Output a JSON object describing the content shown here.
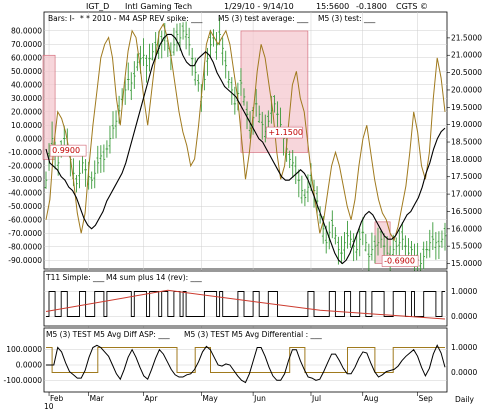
{
  "header": {
    "symbol": "IGT_D",
    "name": "Intl Gaming Tech",
    "dates": "1/29/10 - 9/14/10",
    "time": "15:5600",
    "change": "-0.1800",
    "copyright": "CGTS ©"
  },
  "colors": {
    "bars": "#3a9a3a",
    "black": "#000000",
    "gold": "#a07a1e",
    "red": "#cc3a2e",
    "highlight_fill": "#f4c4cc",
    "highlight_stroke": "#d06070",
    "grid": "#cfcfcf",
    "annotation": "#c00000"
  },
  "chart_data": [
    {
      "type": "line",
      "panel": "main",
      "legend": {
        "bars": "Bars: I-",
        "spike": "* * 2010 - M4 ASP REV spike: ___",
        "avg": "M5 (3) test average: ___",
        "test": "M5 (3) test: ___"
      },
      "left_axis": {
        "ticks": [
          "80.0000",
          "70.0000",
          "60.0000",
          "50.0000",
          "40.0000",
          "30.0000",
          "20.0000",
          "10.0000",
          "0.0000",
          "-10.0000",
          "-20.0000",
          "-30.0000",
          "-40.0000",
          "-50.0000",
          "-60.0000",
          "-70.0000",
          "-80.0000",
          "-90.0000"
        ],
        "range": [
          -95,
          85
        ]
      },
      "right_axis": {
        "ticks": [
          "21.5000",
          "21.0000",
          "20.5000",
          "20.0000",
          "19.5000",
          "19.0000",
          "18.5000",
          "18.0000",
          "17.5000",
          "17.0000",
          "16.5000",
          "16.0000",
          "15.5000",
          "15.0000"
        ],
        "range": [
          14.9,
          21.9
        ]
      },
      "x_axis": {
        "ticks": [
          "Feb",
          "Mar",
          "Apr",
          "May",
          "Jun",
          "Jul",
          "Aug",
          "Sep"
        ],
        "start_label": "10",
        "period": "Daily"
      },
      "annotations": [
        {
          "text": "0.9900",
          "price": 18.18,
          "index": 2
        },
        {
          "text": "+1.1500",
          "price": 18.7,
          "index": 73
        },
        {
          "text": "-0.6900",
          "price": 15.0,
          "index": 111
        }
      ],
      "price_bars_close": [
        17.4,
        18.1,
        18.6,
        18.2,
        17.9,
        18.3,
        18.6,
        18.4,
        18.0,
        17.6,
        17.3,
        17.6,
        17.9,
        17.7,
        17.5,
        17.4,
        17.6,
        17.9,
        18.1,
        18.0,
        18.3,
        18.6,
        18.9,
        19.1,
        19.4,
        19.8,
        20.0,
        20.3,
        20.2,
        20.4,
        20.8,
        20.9,
        21.0,
        20.7,
        20.9,
        21.1,
        21.3,
        21.2,
        21.4,
        21.5,
        21.2,
        21.0,
        21.3,
        21.6,
        21.5,
        21.7,
        21.6,
        21.3,
        20.9,
        20.5,
        20.2,
        19.8,
        20.3,
        20.9,
        21.3,
        21.5,
        21.3,
        21.6,
        21.2,
        20.7,
        20.3,
        20.0,
        19.6,
        19.9,
        20.2,
        19.8,
        19.3,
        18.9,
        19.2,
        19.6,
        19.3,
        19.0,
        18.8,
        19.1,
        19.4,
        19.6,
        19.3,
        19.0,
        18.6,
        18.3,
        18.0,
        17.9,
        17.6,
        17.4,
        17.1,
        16.9,
        17.2,
        17.4,
        17.1,
        16.8,
        16.4,
        16.0,
        15.6,
        15.9,
        16.1,
        15.8,
        15.4,
        15.3,
        15.6,
        15.8,
        15.7,
        15.5,
        15.4,
        15.7,
        15.9,
        15.6,
        15.2,
        15.4,
        15.5,
        15.6,
        15.7,
        15.5,
        15.3,
        15.2,
        15.4,
        15.5,
        15.6,
        15.7,
        15.5,
        15.3,
        15.4,
        15.2,
        15.1,
        15.0,
        15.2,
        15.4,
        15.6,
        15.7,
        15.6,
        15.5,
        15.7,
        15.8
      ],
      "avg_line": [
        18.3,
        17.9,
        17.8,
        17.7,
        17.5,
        17.4,
        17.2,
        17.1,
        16.9,
        16.6,
        16.3,
        16.1,
        16.0,
        16.1,
        16.3,
        16.5,
        16.8,
        17.0,
        17.2,
        17.4,
        17.6,
        17.9,
        18.3,
        18.7,
        19.1,
        19.5,
        19.9,
        20.3,
        20.7,
        21.0,
        21.3,
        21.5,
        21.6,
        21.6,
        21.5,
        21.3,
        21.0,
        20.8,
        20.7,
        20.7,
        20.9,
        21.0,
        21.1,
        21.0,
        20.8,
        20.5,
        20.3,
        20.1,
        20.0,
        19.9,
        19.8,
        19.6,
        19.4,
        19.2,
        19.0,
        18.8,
        18.6,
        18.5,
        18.3,
        18.1,
        17.9,
        17.7,
        17.5,
        17.4,
        17.4,
        17.5,
        17.6,
        17.7,
        17.6,
        17.4,
        17.1,
        16.8,
        16.5,
        16.2,
        15.9,
        15.6,
        15.3,
        15.1,
        15.0,
        15.1,
        15.3,
        15.6,
        15.9,
        16.2,
        16.4,
        16.5,
        16.4,
        16.2,
        16.0,
        15.8,
        15.7,
        15.7,
        15.8,
        16.0,
        16.2,
        16.4,
        16.5,
        16.7,
        16.9,
        17.2,
        17.6,
        17.9,
        18.3,
        18.6,
        18.8,
        18.9
      ],
      "test_line": [
        -60,
        -45,
        -5,
        20,
        15,
        5,
        -10,
        -30,
        -55,
        -70,
        -55,
        -20,
        10,
        35,
        60,
        70,
        75,
        60,
        30,
        10,
        40,
        65,
        80,
        75,
        55,
        30,
        10,
        35,
        60,
        80,
        85,
        75,
        60,
        40,
        20,
        5,
        -5,
        -20,
        -15,
        10,
        40,
        70,
        80,
        75,
        70,
        75,
        80,
        70,
        50,
        30,
        0,
        -30,
        -10,
        20,
        50,
        70,
        60,
        40,
        20,
        -10,
        -30,
        -20,
        10,
        40,
        50,
        30,
        20,
        -5,
        -30,
        -50,
        -70,
        -60,
        -40,
        -20,
        -10,
        -20,
        -35,
        -50,
        -60,
        -45,
        -20,
        0,
        10,
        -10,
        -30,
        -45,
        -55,
        -60,
        -70,
        -75,
        -65,
        -50,
        -35,
        -10,
        20,
        5,
        -20,
        -30,
        -10,
        30,
        60,
        45,
        20
      ]
    },
    {
      "type": "line",
      "panel": "indicator1",
      "legend": {
        "simple": "T11 Simple: ___",
        "sum": "M4 sum plus 14 (rev): ___"
      },
      "y_ticks": [
        "1.0000",
        "0.0000"
      ],
      "y_range": [
        -0.3,
        1.3
      ]
    },
    {
      "type": "line",
      "panel": "indicator2",
      "legend": {
        "diff": "M5 (3) TEST M5 Avg Diff ASP: ___",
        "differential": "M5 (3) TEST M5 Avg Differential : ___"
      },
      "left_ticks": [
        "100.0000",
        "0.0000",
        "-100.0000"
      ],
      "right_ticks": [
        "1.0000",
        "0.0000"
      ],
      "left_range": [
        -160,
        160
      ],
      "right_range": [
        -0.7,
        1.3
      ]
    }
  ]
}
